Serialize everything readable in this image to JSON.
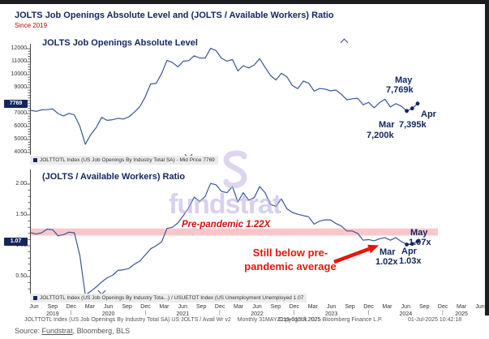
{
  "header": {
    "title": "JOLTS Job Openings Absolute Level and (JOLTS / Available Workers) Ratio",
    "subtitle": "Since 2019"
  },
  "top_chart": {
    "title": "JOLTS Job Openings Absolute Level",
    "axis_tag": "7769",
    "legend": "JOLTTOTL Index (US Job Openings By Industry Total SA) - Mid Price 7769",
    "annotations": {
      "may_label": "May",
      "may_value": "7,769k",
      "apr_label": "Apr",
      "apr_value": "7,395k",
      "mar_label": "Mar",
      "mar_value": "7,200k"
    }
  },
  "bottom_chart": {
    "title": "(JOLTS / Available Workers) Ratio",
    "axis_tag": "1.07",
    "legend": "JOLTTOTL Index (US Job Openings By Industry Tota...) / USUETOT Index (US Unemployment Unemployed 1.07",
    "band_label": "Pre-pandemic 1.22X",
    "callout_line1": "Still below pre-",
    "callout_line2": "pandemic average",
    "annotations": {
      "may_label": "May",
      "may_value": "1.07x",
      "apr_label": "Apr",
      "apr_value": "1.03x",
      "mar_label": "Mar",
      "mar_value": "1.02x"
    }
  },
  "x_axis": {
    "quarters": [
      "Jun",
      "Sep",
      "Dec",
      "Mar",
      "Jun",
      "Sep",
      "Dec",
      "Mar",
      "Jun",
      "Sep",
      "Dec",
      "Mar",
      "Jun",
      "Sep",
      "Dec",
      "Mar",
      "Jun",
      "Sep",
      "Dec",
      "Mar",
      "Jun",
      "Sep",
      "Dec",
      "Mar",
      "Jun"
    ],
    "years": [
      {
        "label": "2019",
        "q": 1
      },
      {
        "label": "2020",
        "q": 4
      },
      {
        "label": "2021",
        "q": 8
      },
      {
        "label": "2022",
        "q": 12
      },
      {
        "label": "2023",
        "q": 16
      },
      {
        "label": "2024",
        "q": 20
      },
      {
        "label": "2025",
        "q": 23
      }
    ]
  },
  "watermark": {
    "text": "fundstrat"
  },
  "footer": {
    "instrument": "JOLTTOTL Index (US Job Openings By Industry Total SA) US JOLTS / Avail Wr v2",
    "periodicity": "Monthly 31MAY2019-01JUL2025",
    "copyright": "Copyright® 2025 Bloomberg Finance L.P.",
    "timestamp": "01-Jul-2025 10:42:18",
    "source_prefix": "Source:",
    "source_link": "Fundstrat",
    "source_rest": ", Bloomberg, BLS"
  },
  "colors": {
    "navy": "#13265f",
    "line_blue": "#3a5795",
    "red": "#d90f0a",
    "arrow_red": "#e8150d",
    "band_pink": "#f9c7cb",
    "legend_bg": "#ececec",
    "lavender": "#c9bce6",
    "axis": "#444444"
  },
  "chart_data": [
    {
      "type": "line",
      "title": "JOLTS Job Openings Absolute Level",
      "series": [
        {
          "name": "JOLTTOTL Index (US Job Openings By Industry Total SA) - Mid Price",
          "values": [
            7244,
            7170,
            7288,
            7301,
            7361,
            7000,
            6820,
            7012,
            6900,
            6011,
            4630,
            5371,
            5915,
            6697,
            6478,
            6522,
            6632,
            6572,
            6752,
            7099,
            7526,
            8288,
            9286,
            9316,
            10073,
            11098,
            10925,
            10602,
            11033,
            11075,
            11448,
            11283,
            11266,
            12027,
            11855,
            11254,
            11040,
            11170,
            10280,
            10687,
            10512,
            10746,
            11234,
            10563,
            9931,
            9590,
            10103,
            9824,
            9165,
            8920,
            9497,
            9350,
            8733,
            8925,
            8889,
            8748,
            8813,
            8488,
            8059,
            8140,
            8184,
            7673,
            7861,
            7443,
            7839,
            8098,
            7508,
            7762,
            7568,
            7200,
            7395,
            7769
          ]
        }
      ],
      "x_start": "2019-06",
      "x_end": "2025-05",
      "frequency": "monthly",
      "unit": "thousands of job openings",
      "ylim": [
        4000,
        12200
      ],
      "y_ticks": [
        12000,
        11000,
        10000,
        9000,
        8000,
        7000,
        6000,
        5000,
        4000
      ],
      "visible_y_ticks": [
        "12000",
        "11000",
        "10000",
        "9000",
        "7000",
        "6000",
        "5000",
        "4000"
      ],
      "last_value": 7769,
      "highlighted_points": [
        {
          "month": "2025-03",
          "label": "Mar",
          "value": 7200
        },
        {
          "month": "2025-04",
          "label": "Apr",
          "value": 7395
        },
        {
          "month": "2025-05",
          "label": "May",
          "value": 7769
        }
      ],
      "grid": false,
      "legend_position": "bottom-left"
    },
    {
      "type": "line",
      "title": "(JOLTS / Available Workers) Ratio",
      "series": [
        {
          "name": "JOLTTOTL Index / USUETOT Index (US Unemployment Unemployed)",
          "values": [
            1.21,
            1.19,
            1.21,
            1.27,
            1.26,
            1.16,
            1.18,
            1.22,
            1.21,
            0.84,
            0.2,
            0.26,
            0.33,
            0.41,
            0.48,
            0.52,
            0.6,
            0.61,
            0.63,
            0.7,
            0.75,
            0.85,
            0.95,
            1.0,
            1.06,
            1.28,
            1.3,
            1.37,
            1.49,
            1.62,
            1.79,
            1.72,
            1.8,
            2.01,
            1.99,
            1.88,
            1.86,
            1.96,
            1.71,
            1.86,
            1.74,
            1.78,
            1.96,
            1.86,
            1.67,
            1.64,
            1.76,
            1.6,
            1.54,
            1.51,
            1.49,
            1.47,
            1.35,
            1.4,
            1.42,
            1.42,
            1.36,
            1.32,
            1.24,
            1.24,
            1.2,
            1.09,
            1.1,
            1.08,
            1.11,
            1.13,
            1.09,
            1.13,
            1.07,
            1.02,
            1.03,
            1.07
          ]
        }
      ],
      "x_start": "2019-06",
      "x_end": "2025-05",
      "frequency": "monthly",
      "unit": "ratio of job openings to unemployed workers",
      "ylim": [
        0.2,
        2.1
      ],
      "y_ticks": [
        2.0,
        1.5,
        1.0,
        0.5
      ],
      "visible_y_ticks": [
        "2.00",
        "1.50",
        "1.00",
        "0.50"
      ],
      "last_value": 1.07,
      "band": {
        "value": 1.22,
        "label": "Pre-pandemic 1.22X"
      },
      "highlighted_points": [
        {
          "month": "2025-03",
          "label": "Mar",
          "value": 1.02
        },
        {
          "month": "2025-04",
          "label": "Apr",
          "value": 1.03
        },
        {
          "month": "2025-05",
          "label": "May",
          "value": 1.07
        }
      ],
      "grid": false,
      "legend_position": "bottom-left"
    }
  ]
}
